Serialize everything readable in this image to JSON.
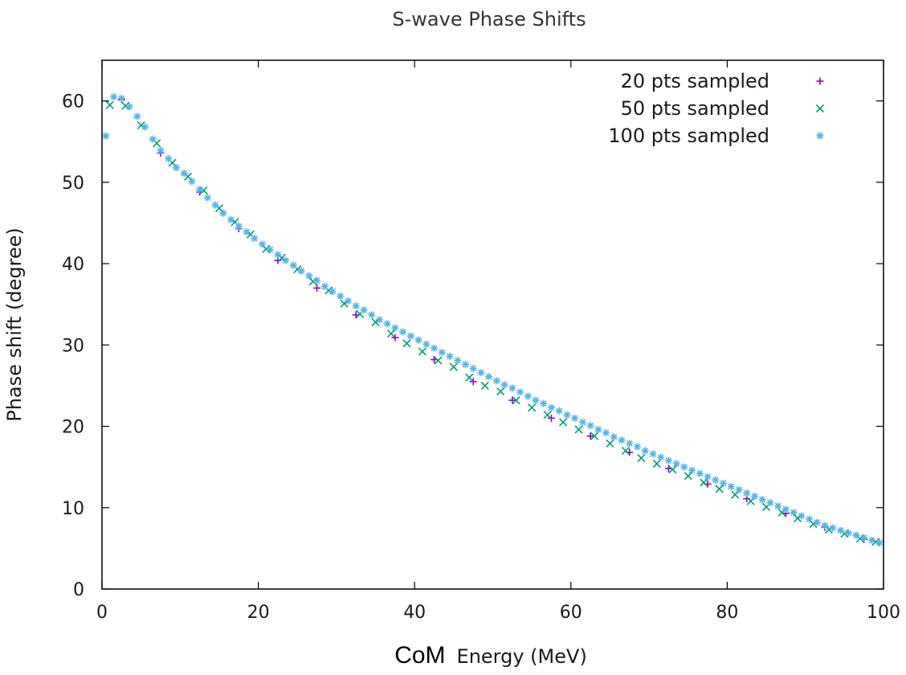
{
  "chart_data": {
    "type": "scatter",
    "title": "S-wave Phase Shifts",
    "xlabel_prefix": "CoM",
    "xlabel": "Energy (MeV)",
    "ylabel": "Phase shift (degree)",
    "xlim": [
      0,
      100
    ],
    "ylim": [
      0,
      65
    ],
    "xticks": [
      0,
      20,
      40,
      60,
      80,
      100
    ],
    "yticks": [
      0,
      10,
      20,
      30,
      40,
      50,
      60
    ],
    "grid": false,
    "legend_position": "top-right",
    "series": [
      {
        "name": "20 pts sampled",
        "marker": "plus",
        "color": "#9400d3",
        "x": [
          2.5,
          7.5,
          12.5,
          17.5,
          22.5,
          27.5,
          32.5,
          37.5,
          42.5,
          47.5,
          52.5,
          57.5,
          62.5,
          67.5,
          72.5,
          77.5,
          82.5,
          87.5,
          92.5,
          97.5
        ],
        "y": [
          60.2,
          53.6,
          48.8,
          44.3,
          40.4,
          37.0,
          33.7,
          30.9,
          28.2,
          25.5,
          23.2,
          21.0,
          18.8,
          16.8,
          14.8,
          12.9,
          11.1,
          9.3,
          7.6,
          6.1
        ]
      },
      {
        "name": "50 pts sampled",
        "marker": "cross",
        "color": "#009e73",
        "x": [
          1,
          3,
          5,
          7,
          9,
          11,
          13,
          15,
          17,
          19,
          21,
          23,
          25,
          27,
          29,
          31,
          33,
          35,
          37,
          39,
          41,
          43,
          45,
          47,
          49,
          51,
          53,
          55,
          57,
          59,
          61,
          63,
          65,
          67,
          69,
          71,
          73,
          75,
          77,
          79,
          81,
          83,
          85,
          87,
          89,
          91,
          93,
          95,
          97,
          99
        ],
        "y": [
          59.5,
          59.4,
          57.0,
          54.8,
          52.4,
          50.7,
          49.0,
          46.8,
          45.1,
          43.6,
          41.8,
          40.7,
          39.3,
          37.8,
          36.7,
          35.1,
          33.8,
          32.8,
          31.4,
          30.2,
          29.2,
          28.1,
          27.3,
          26.0,
          25.0,
          24.3,
          23.2,
          22.3,
          21.4,
          20.5,
          19.6,
          18.8,
          17.9,
          17.0,
          16.1,
          15.4,
          14.7,
          13.9,
          13.1,
          12.3,
          11.6,
          10.8,
          10.1,
          9.4,
          8.7,
          8.0,
          7.3,
          6.8,
          6.2,
          5.8
        ]
      },
      {
        "name": "100 pts sampled",
        "marker": "star",
        "color": "#56b4e9",
        "x": [
          0.5,
          1.5,
          2.5,
          3.5,
          4.5,
          5.5,
          6.5,
          7.5,
          8.5,
          9.5,
          10.5,
          11.5,
          12.5,
          13.5,
          14.5,
          15.5,
          16.5,
          17.5,
          18.5,
          19.5,
          20.5,
          21.5,
          22.5,
          23.5,
          24.5,
          25.5,
          26.5,
          27.5,
          28.5,
          29.5,
          30.5,
          31.5,
          32.5,
          33.5,
          34.5,
          35.5,
          36.5,
          37.5,
          38.5,
          39.5,
          40.5,
          41.5,
          42.5,
          43.5,
          44.5,
          45.5,
          46.5,
          47.5,
          48.5,
          49.5,
          50.5,
          51.5,
          52.5,
          53.5,
          54.5,
          55.5,
          56.5,
          57.5,
          58.5,
          59.5,
          60.5,
          61.5,
          62.5,
          63.5,
          64.5,
          65.5,
          66.5,
          67.5,
          68.5,
          69.5,
          70.5,
          71.5,
          72.5,
          73.5,
          74.5,
          75.5,
          76.5,
          77.5,
          78.5,
          79.5,
          80.5,
          81.5,
          82.5,
          83.5,
          84.5,
          85.5,
          86.5,
          87.5,
          88.5,
          89.5,
          90.5,
          91.5,
          92.5,
          93.5,
          94.5,
          95.5,
          96.5,
          97.5,
          98.5,
          99.5
        ],
        "y": [
          55.7,
          60.5,
          60.3,
          59.3,
          58.1,
          56.8,
          55.3,
          53.9,
          52.9,
          51.8,
          51.1,
          50.1,
          49.1,
          48.1,
          47.2,
          46.2,
          45.4,
          44.6,
          43.9,
          43.1,
          42.4,
          41.7,
          41.1,
          40.4,
          39.8,
          39.1,
          38.5,
          37.9,
          37.2,
          36.6,
          36.0,
          35.4,
          34.8,
          34.3,
          33.7,
          33.1,
          32.6,
          32.1,
          31.6,
          31.1,
          30.6,
          30.1,
          29.6,
          29.1,
          28.6,
          28.1,
          27.6,
          27.1,
          26.6,
          26.1,
          25.6,
          25.1,
          24.7,
          24.2,
          23.7,
          23.2,
          22.8,
          22.3,
          21.9,
          21.4,
          21.0,
          20.5,
          20.1,
          19.6,
          19.2,
          18.7,
          18.3,
          17.9,
          17.5,
          17.0,
          16.6,
          16.2,
          15.8,
          15.4,
          15.0,
          14.6,
          14.2,
          13.8,
          13.4,
          13.0,
          12.6,
          12.2,
          11.8,
          11.4,
          11.0,
          10.6,
          10.2,
          9.8,
          9.4,
          9.0,
          8.6,
          8.2,
          7.8,
          7.5,
          7.2,
          6.9,
          6.6,
          6.3,
          6.0,
          5.7
        ]
      }
    ]
  }
}
